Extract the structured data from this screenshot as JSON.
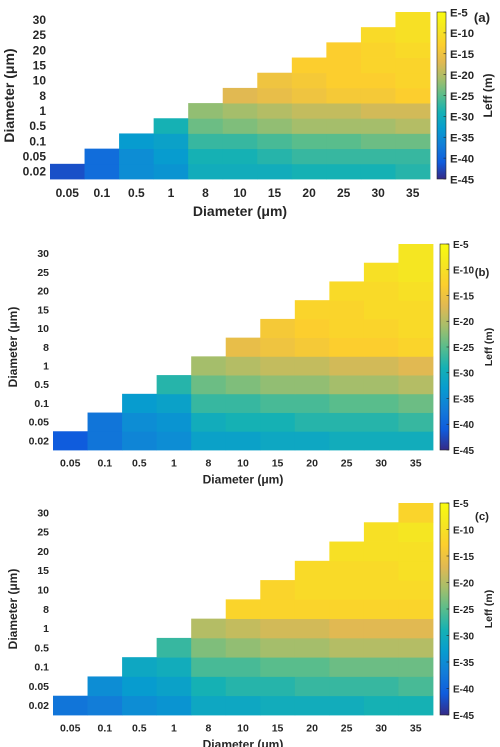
{
  "chart_data": [
    {
      "type": "heatmap",
      "panel": "(a)",
      "xlabel": "Diameter (μm)",
      "ylabel": "Diameter (μm)",
      "colorbar_label": "Leff (m)",
      "colorbar_ticks": [
        "E-5",
        "E-10",
        "E-15",
        "E-20",
        "E-25",
        "E-30",
        "E-35",
        "E-40",
        "E-45"
      ],
      "clim": [
        -45,
        -5
      ],
      "colormap": "parula",
      "x_categories": [
        "0.05",
        "0.1",
        "0.5",
        "1",
        "8",
        "10",
        "15",
        "20",
        "25",
        "30",
        "35"
      ],
      "y_categories": [
        "0.02",
        "0.05",
        "0.1",
        "0.5",
        "1",
        "8",
        "10",
        "15",
        "20",
        "25",
        "30"
      ],
      "exponents": [
        [
          -42,
          -39,
          -35,
          -34,
          -30,
          -30,
          -30,
          -29,
          -29,
          -29,
          -28
        ],
        [
          null,
          -39,
          -35,
          -33,
          -29,
          -29,
          -28,
          -27,
          -27,
          -27,
          -27
        ],
        [
          null,
          null,
          -33,
          -32,
          -27,
          -27,
          -26,
          -25,
          -25,
          -24,
          -24
        ],
        [
          null,
          null,
          null,
          -29,
          -24,
          -23,
          -22,
          -21,
          -21,
          -21,
          -20
        ],
        [
          null,
          null,
          null,
          null,
          -22,
          -21,
          -20,
          -19,
          -19,
          -18,
          -18
        ],
        [
          null,
          null,
          null,
          null,
          null,
          -17,
          -16,
          -15,
          -14,
          -14,
          -13
        ],
        [
          null,
          null,
          null,
          null,
          null,
          null,
          -15,
          -14,
          -13,
          -13,
          -12
        ],
        [
          null,
          null,
          null,
          null,
          null,
          null,
          null,
          -13,
          -13,
          -12,
          -12
        ],
        [
          null,
          null,
          null,
          null,
          null,
          null,
          null,
          null,
          -13,
          -12,
          -11
        ],
        [
          null,
          null,
          null,
          null,
          null,
          null,
          null,
          null,
          null,
          -11,
          -10
        ],
        [
          null,
          null,
          null,
          null,
          null,
          null,
          null,
          null,
          null,
          null,
          -10
        ]
      ]
    },
    {
      "type": "heatmap",
      "panel": "(b)",
      "xlabel": "Diameter (μm)",
      "ylabel": "Diameter (μm)",
      "colorbar_label": "Leff (m)",
      "colorbar_ticks": [
        "E-5",
        "E-10",
        "E-15",
        "E-20",
        "E-25",
        "E-30",
        "E-35",
        "E-40",
        "E-45"
      ],
      "clim": [
        -45,
        -5
      ],
      "colormap": "parula",
      "x_categories": [
        "0.05",
        "0.1",
        "0.5",
        "1",
        "8",
        "10",
        "15",
        "20",
        "25",
        "30",
        "35"
      ],
      "y_categories": [
        "0.02",
        "0.05",
        "0.1",
        "0.5",
        "1",
        "8",
        "10",
        "15",
        "20",
        "25",
        "30"
      ],
      "exponents": [
        [
          -41,
          -38,
          -36,
          -35,
          -32,
          -32,
          -31,
          -31,
          -30,
          -30,
          -30
        ],
        [
          null,
          -38,
          -35,
          -34,
          -30,
          -29,
          -29,
          -28,
          -28,
          -28,
          -27
        ],
        [
          null,
          null,
          -33,
          -32,
          -27,
          -27,
          -26,
          -26,
          -25,
          -25,
          -24
        ],
        [
          null,
          null,
          null,
          -28,
          -24,
          -23,
          -22,
          -22,
          -21,
          -21,
          -20
        ],
        [
          null,
          null,
          null,
          null,
          -21,
          -20,
          -19,
          -19,
          -18,
          -18,
          -17
        ],
        [
          null,
          null,
          null,
          null,
          null,
          -16,
          -15,
          -14,
          -13,
          -13,
          -12
        ],
        [
          null,
          null,
          null,
          null,
          null,
          null,
          -14,
          -13,
          -12,
          -12,
          -11
        ],
        [
          null,
          null,
          null,
          null,
          null,
          null,
          null,
          -12,
          -12,
          -11,
          -11
        ],
        [
          null,
          null,
          null,
          null,
          null,
          null,
          null,
          null,
          -11,
          -11,
          -10
        ],
        [
          null,
          null,
          null,
          null,
          null,
          null,
          null,
          null,
          null,
          -10,
          -9
        ],
        [
          null,
          null,
          null,
          null,
          null,
          null,
          null,
          null,
          null,
          null,
          -9
        ]
      ]
    },
    {
      "type": "heatmap",
      "panel": "(c)",
      "xlabel": "Diameter (μm)",
      "ylabel": "Diameter (μm)",
      "colorbar_label": "Leff (m)",
      "colorbar_ticks": [
        "E-5",
        "E-10",
        "E-15",
        "E-20",
        "E-25",
        "E-30",
        "E-35",
        "E-40",
        "E-45"
      ],
      "clim": [
        -45,
        -5
      ],
      "colormap": "parula",
      "x_categories": [
        "0.05",
        "0.1",
        "0.5",
        "1",
        "8",
        "10",
        "15",
        "20",
        "25",
        "30",
        "35"
      ],
      "y_categories": [
        "0.02",
        "0.05",
        "0.1",
        "0.5",
        "1",
        "8",
        "10",
        "15",
        "20",
        "25",
        "30"
      ],
      "exponents": [
        [
          -38,
          -37,
          -35,
          -34,
          -31,
          -31,
          -30,
          -30,
          -30,
          -29,
          -29
        ],
        [
          null,
          -35,
          -33,
          -32,
          -29,
          -28,
          -28,
          -27,
          -27,
          -27,
          -26
        ],
        [
          null,
          null,
          -31,
          -30,
          -26,
          -26,
          -25,
          -25,
          -24,
          -24,
          -24
        ],
        [
          null,
          null,
          null,
          -27,
          -23,
          -22,
          -21,
          -21,
          -20,
          -20,
          -20
        ],
        [
          null,
          null,
          null,
          null,
          -20,
          -19,
          -18,
          -18,
          -17,
          -17,
          -17
        ],
        [
          null,
          null,
          null,
          null,
          null,
          -12,
          -12,
          -12,
          -12,
          -12,
          -12
        ],
        [
          null,
          null,
          null,
          null,
          null,
          null,
          -12,
          -11,
          -11,
          -11,
          -11
        ],
        [
          null,
          null,
          null,
          null,
          null,
          null,
          null,
          -11,
          -11,
          -11,
          -10
        ],
        [
          null,
          null,
          null,
          null,
          null,
          null,
          null,
          null,
          -10,
          -10,
          -10
        ],
        [
          null,
          null,
          null,
          null,
          null,
          null,
          null,
          null,
          null,
          -10,
          -9
        ],
        [
          null,
          null,
          null,
          null,
          null,
          null,
          null,
          null,
          null,
          null,
          -12
        ]
      ]
    }
  ]
}
